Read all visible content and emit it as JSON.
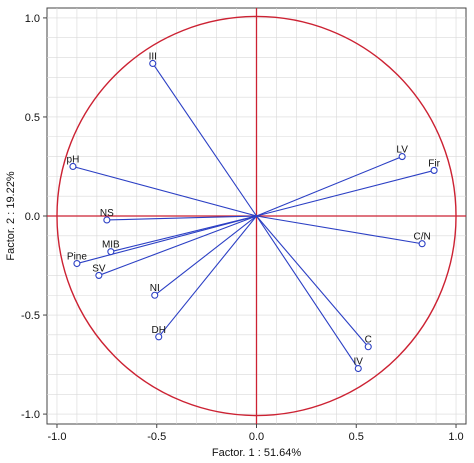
{
  "chart_data": {
    "type": "scatter",
    "xlabel": "Factor. 1 : 51.64%",
    "ylabel": "Factor. 2 : 19.22%",
    "xlim": [
      -1.05,
      1.05
    ],
    "ylim": [
      -1.05,
      1.05
    ],
    "x_ticks": [
      "-1.0",
      "-0.5",
      "0.0",
      "0.5",
      "1.0"
    ],
    "y_ticks": [
      "1.0",
      "0.5",
      "0.0",
      "-0.5",
      "-1.0"
    ],
    "grid": true,
    "circle_radius": 1.0,
    "colors": {
      "vectors": "#2b3fc4",
      "circle": "#cc2233",
      "grid": "#d9d9d9",
      "axes": "#444444"
    },
    "points": [
      {
        "label": "III",
        "x": -0.52,
        "y": 0.77
      },
      {
        "label": "pH",
        "x": -0.92,
        "y": 0.25
      },
      {
        "label": "LV",
        "x": 0.73,
        "y": 0.3
      },
      {
        "label": "Fir",
        "x": 0.89,
        "y": 0.23
      },
      {
        "label": "NS",
        "x": -0.75,
        "y": -0.02
      },
      {
        "label": "C/N",
        "x": 0.83,
        "y": -0.14
      },
      {
        "label": "MIB",
        "x": -0.73,
        "y": -0.18
      },
      {
        "label": "Pine",
        "x": -0.9,
        "y": -0.24
      },
      {
        "label": "SV",
        "x": -0.79,
        "y": -0.3
      },
      {
        "label": "NI",
        "x": -0.51,
        "y": -0.4
      },
      {
        "label": "DH",
        "x": -0.49,
        "y": -0.61
      },
      {
        "label": "C",
        "x": 0.56,
        "y": -0.66
      },
      {
        "label": "IV",
        "x": 0.51,
        "y": -0.77
      }
    ]
  }
}
